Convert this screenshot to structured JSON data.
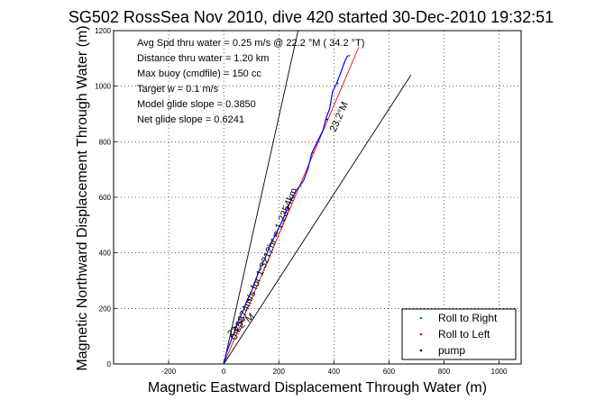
{
  "chart_data": {
    "type": "line",
    "title": "SG502 RossSea Nov 2010, dive 420 started 30-Dec-2010 19:32:51",
    "xlabel": "Magnetic Eastward Displacement Through Water (m)",
    "ylabel": "Magnetic Northward Displacement Through Water (m)",
    "xlim": [
      -400,
      1080
    ],
    "ylim": [
      0,
      1200
    ],
    "xticks": [
      -200,
      0,
      200,
      400,
      600,
      800,
      1000
    ],
    "yticks": [
      0,
      200,
      400,
      600,
      800,
      1000,
      1200
    ],
    "grid": true,
    "legend_position": "bottom-right",
    "legend": [
      {
        "label": "Roll to Right",
        "color": "#00aa00"
      },
      {
        "label": "Roll to Left",
        "color": "#ff0000"
      },
      {
        "label": "pump",
        "color": "#000000"
      }
    ],
    "info_lines": [
      "Avg Spd thru water =  0.25 m/s @  22.2   °M ( 34.2 °T)",
      "Distance thru water =  1.20 km",
      "Max buoy (cmdfile) = 150 cc",
      "Target w = 0.1 m/s",
      "Model glide slope = 0.3850",
      "Net glide slope = 0.6241"
    ],
    "annotations": [
      "0.25874m/s for 1.3212hr = 1.2354km",
      "23.2°M",
      "23.2°M"
    ],
    "series": [
      {
        "name": "track",
        "color": "#0000ff",
        "x": [
          0,
          10,
          25,
          40,
          55,
          70,
          85,
          100,
          115,
          130,
          150,
          165,
          185,
          200,
          215,
          230,
          245,
          260,
          275,
          290,
          305,
          320,
          340,
          360,
          370,
          385,
          395,
          410,
          425,
          440,
          450
        ],
        "y": [
          0,
          40,
          80,
          120,
          160,
          190,
          230,
          260,
          300,
          340,
          380,
          420,
          460,
          490,
          520,
          560,
          590,
          620,
          640,
          660,
          700,
          760,
          800,
          840,
          880,
          920,
          980,
          1010,
          1050,
          1090,
          1110
        ]
      },
      {
        "name": "heading-line",
        "color": "#ff0000",
        "x": [
          0,
          490
        ],
        "y": [
          0,
          1140
        ]
      },
      {
        "name": "glide-bound-steep",
        "color": "#000000",
        "x": [
          0,
          270
        ],
        "y": [
          0,
          1200
        ]
      },
      {
        "name": "glide-bound-shallow",
        "color": "#000000",
        "x": [
          0,
          680
        ],
        "y": [
          0,
          1040
        ]
      }
    ]
  }
}
